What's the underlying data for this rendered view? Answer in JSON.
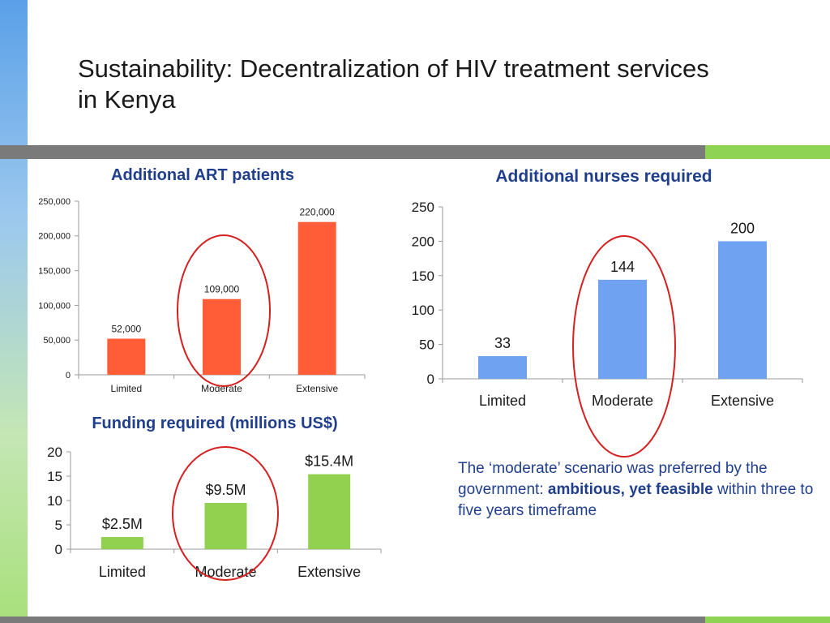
{
  "slide": {
    "title": "Sustainability: Decentralization of HIV treatment services in Kenya"
  },
  "note": {
    "part1": "The ‘moderate’ scenario was preferred by the government: ",
    "bold": "ambitious, yet feasible",
    "part2": " within three to five years timeframe"
  },
  "colors": {
    "strip_top": "#5aa0e8",
    "strip_bottom": "#a8e07a",
    "band_gray": "#7a7a7a",
    "band_green": "#8ed354",
    "title_blue": "#1f3e8c",
    "highlight_red": "#d42020"
  },
  "chart_data": [
    {
      "id": "art",
      "type": "bar",
      "title": "Additional ART patients",
      "categories": [
        "Limited",
        "Moderate",
        "Extensive"
      ],
      "values": [
        52000,
        109000,
        220000
      ],
      "value_labels": [
        "52,000",
        "109,000",
        "220,000"
      ],
      "ylim": [
        0,
        250000
      ],
      "yticks": [
        0,
        50000,
        100000,
        150000,
        200000,
        250000
      ],
      "ytick_labels": [
        "0",
        "50,000",
        "100,000",
        "150,000",
        "200,000",
        "250,000"
      ],
      "color": "#ff5c38",
      "highlight": "Moderate",
      "grid": false
    },
    {
      "id": "nurses",
      "type": "bar",
      "title": "Additional nurses required",
      "categories": [
        "Limited",
        "Moderate",
        "Extensive"
      ],
      "values": [
        33,
        144,
        200
      ],
      "value_labels": [
        "33",
        "144",
        "200"
      ],
      "ylim": [
        0,
        250
      ],
      "yticks": [
        0,
        50,
        100,
        150,
        200,
        250
      ],
      "ytick_labels": [
        "0",
        "50",
        "100",
        "150",
        "200",
        "250"
      ],
      "color": "#6fa3f2",
      "highlight": "Moderate",
      "grid": false
    },
    {
      "id": "funding",
      "type": "bar",
      "title": "Funding required (millions US$)",
      "categories": [
        "Limited",
        "Moderate",
        "Extensive"
      ],
      "values": [
        2.5,
        9.5,
        15.4
      ],
      "value_labels": [
        "$2.5M",
        "$9.5M",
        "$15.4M"
      ],
      "ylim": [
        0,
        20
      ],
      "yticks": [
        0,
        5,
        10,
        15,
        20
      ],
      "ytick_labels": [
        "0",
        "5",
        "10",
        "15",
        "20"
      ],
      "color": "#92d050",
      "highlight": "Moderate",
      "grid": false
    }
  ]
}
